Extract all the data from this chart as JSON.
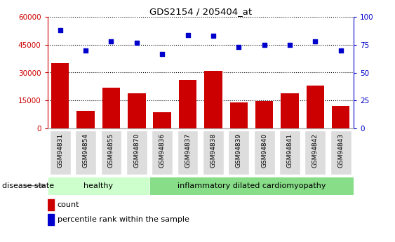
{
  "title": "GDS2154 / 205404_at",
  "samples": [
    "GSM94831",
    "GSM94854",
    "GSM94855",
    "GSM94870",
    "GSM94836",
    "GSM94837",
    "GSM94838",
    "GSM94839",
    "GSM94840",
    "GSM94841",
    "GSM94842",
    "GSM94843"
  ],
  "counts": [
    35000,
    9500,
    22000,
    19000,
    8500,
    26000,
    31000,
    14000,
    14500,
    19000,
    23000,
    12000
  ],
  "percentiles": [
    88,
    70,
    78,
    77,
    67,
    84,
    83,
    73,
    75,
    75,
    78,
    70
  ],
  "bar_color": "#cc0000",
  "dot_color": "#0000cc",
  "ylim_left": [
    0,
    60000
  ],
  "ylim_right": [
    0,
    100
  ],
  "yticks_left": [
    0,
    15000,
    30000,
    45000,
    60000
  ],
  "yticks_right": [
    0,
    25,
    50,
    75,
    100
  ],
  "healthy_samples": 4,
  "healthy_label": "healthy",
  "disease_label": "inflammatory dilated cardiomyopathy",
  "healthy_color": "#ccffcc",
  "disease_color": "#88dd88",
  "xtick_box_color": "#dddddd",
  "legend_count_label": "count",
  "legend_pct_label": "percentile rank within the sample",
  "disease_state_label": "disease state",
  "grid_color": "black",
  "bg_color": "#ffffff"
}
